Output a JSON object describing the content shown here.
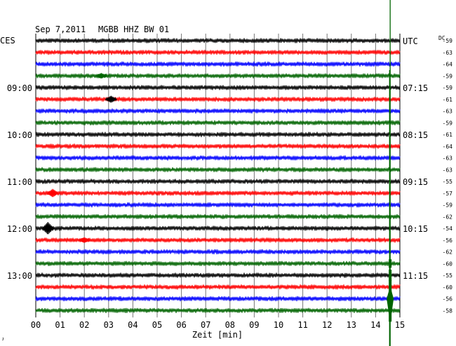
{
  "header": {
    "date": "Sep 7,2011",
    "station": "MGBB HHZ BW 01",
    "left_tz": "CES",
    "right_tz": "UTC",
    "dc_label": "DC"
  },
  "chart_data": {
    "type": "line",
    "xlabel": "Zeit [min]",
    "xlim": [
      0,
      15
    ],
    "x_tick_labels": [
      "00",
      "01",
      "02",
      "03",
      "04",
      "05",
      "06",
      "07",
      "08",
      "09",
      "10",
      "11",
      "12",
      "13",
      "14",
      "15"
    ],
    "trace_colors": [
      "#000000",
      "#ff0000",
      "#0000ff",
      "#006400"
    ],
    "left_hour_labels": [
      {
        "row": 4,
        "text": "09:00"
      },
      {
        "row": 8,
        "text": "10:00"
      },
      {
        "row": 12,
        "text": "11:00"
      },
      {
        "row": 16,
        "text": "12:00"
      },
      {
        "row": 20,
        "text": "13:00"
      }
    ],
    "right_time_labels": [
      {
        "row": 0,
        "text": "UTC"
      },
      {
        "row": 4,
        "text": "07:15"
      },
      {
        "row": 8,
        "text": "08:15"
      },
      {
        "row": 12,
        "text": "09:15"
      },
      {
        "row": 16,
        "text": "10:15"
      },
      {
        "row": 20,
        "text": "11:15"
      }
    ],
    "dc_offsets": [
      -59,
      -63,
      -64,
      -59,
      -59,
      -61,
      -63,
      -59,
      -61,
      -64,
      -63,
      -63,
      -55,
      -57,
      -59,
      -62,
      -54,
      -56,
      -62,
      -60,
      -55,
      -60,
      -56,
      -58
    ],
    "event": {
      "minute": 14.6,
      "color": "#006400"
    }
  },
  "footer": {
    "corner_mark": "ᴊ"
  }
}
